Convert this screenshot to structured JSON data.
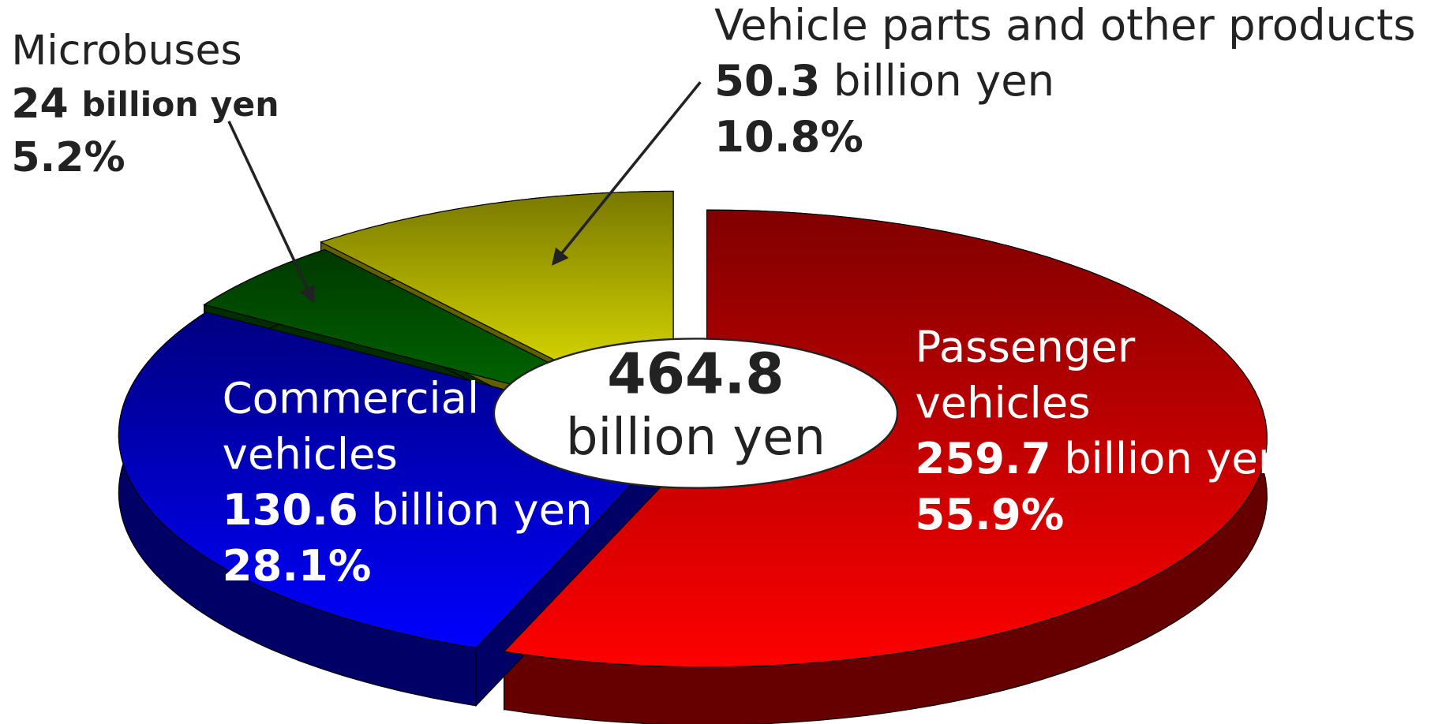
{
  "chart_data": {
    "type": "pie",
    "categories": [
      "Passenger vehicles",
      "Commercial vehicles",
      "Microbuses",
      "Vehicle parts and other products"
    ],
    "values": [
      259.7,
      130.6,
      24,
      50.3
    ],
    "unit": "billion yen",
    "shares": [
      55.9,
      28.1,
      5.2,
      10.8
    ],
    "share_labels": [
      "55.9%",
      "28.1%",
      "5.2%",
      "10.8%"
    ],
    "colors": [
      "#ff0000",
      "#0000ff",
      "#007000",
      "#f0f000"
    ],
    "total": 464.8,
    "total_unit": "billion yen"
  }
}
